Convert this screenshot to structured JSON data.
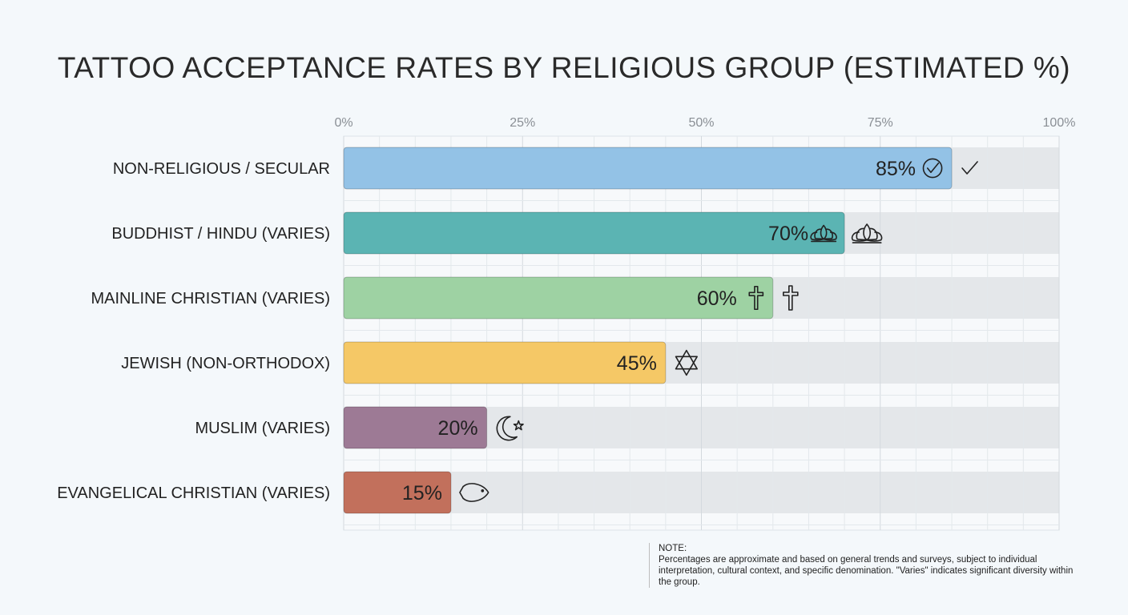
{
  "chart_data": {
    "type": "bar",
    "orientation": "horizontal",
    "title": "TATTOO ACCEPTANCE RATES BY RELIGIOUS GROUP (ESTIMATED %)",
    "xlabel": "",
    "ylabel": "",
    "xlim": [
      0,
      100
    ],
    "ticks": [
      {
        "value": 0,
        "label": "0%"
      },
      {
        "value": 25,
        "label": "25%"
      },
      {
        "value": 50,
        "label": "50%"
      },
      {
        "value": 75,
        "label": "75%"
      },
      {
        "value": 100,
        "label": "100%"
      }
    ],
    "grid": true,
    "categories": [
      "NON-RELIGIOUS / SECULAR",
      "BUDDHIST / HINDU (VARIES)",
      "MAINLINE CHRISTIAN (VARIES)",
      "JEWISH (NON-ORTHODOX)",
      "MUSLIM (VARIES)",
      "EVANGELICAL CHRISTIAN (VARIES)"
    ],
    "values": [
      85,
      70,
      60,
      45,
      20,
      15
    ],
    "value_labels": [
      "85%",
      "70%",
      "60%",
      "45%",
      "20%",
      "15%"
    ],
    "colors": [
      "#93c2e6",
      "#5bb4b3",
      "#9ed2a3",
      "#f5c866",
      "#9d7a95",
      "#c2705c"
    ],
    "icons": [
      "check-icon",
      "lotus-icon",
      "cross-icon",
      "star-of-david-icon",
      "crescent-star-icon",
      "fish-icon"
    ]
  },
  "note": {
    "heading": "NOTE:",
    "text": "Percentages are approximate and based on general trends and surveys, subject to individual interpretation, cultural context, and specific denomination. \"Varies\" indicates significant diversity within the group."
  }
}
